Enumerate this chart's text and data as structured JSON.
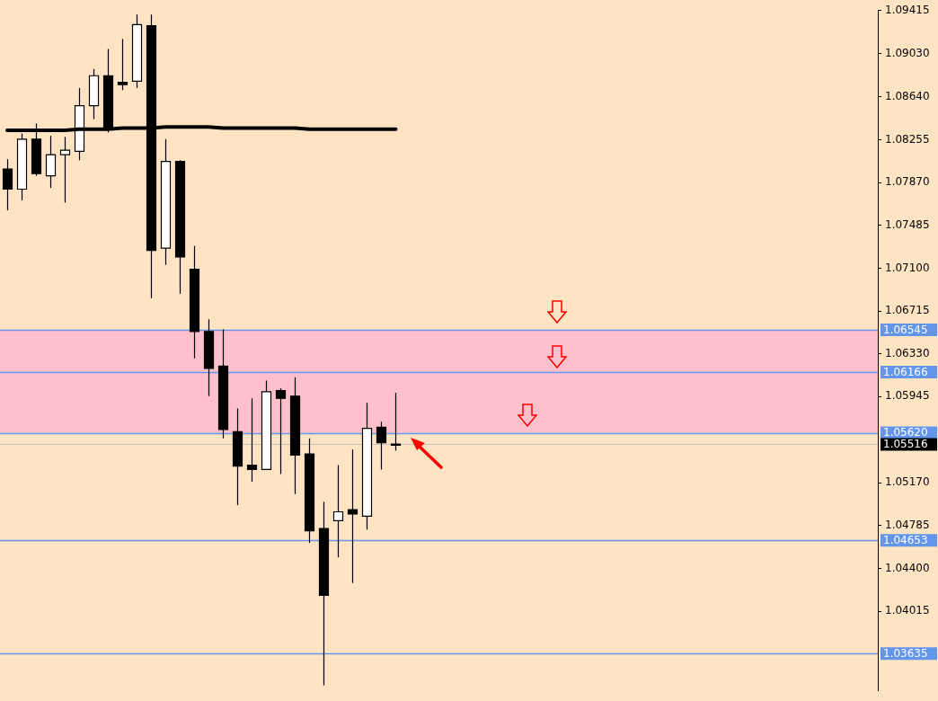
{
  "chart_data": {
    "type": "candlestick",
    "categories": [
      null,
      null,
      null,
      null,
      null,
      null,
      null,
      null,
      null,
      null,
      null,
      null,
      null,
      null,
      null,
      null,
      null,
      null,
      null,
      null,
      null,
      null,
      null,
      null,
      null,
      null,
      null,
      null,
      null,
      null,
      null,
      null,
      null,
      null,
      null,
      null,
      null,
      null,
      null,
      null,
      null,
      null,
      null,
      null,
      null,
      null,
      null,
      null,
      null,
      null,
      null,
      null,
      null,
      null,
      null,
      null,
      null,
      null,
      null,
      null,
      null
    ],
    "ohlc": [
      [
        1.0799,
        1.0808,
        1.0762,
        1.0781
      ],
      [
        1.0781,
        1.0831,
        1.0771,
        1.0826
      ],
      [
        1.0826,
        1.084,
        1.0793,
        1.0795
      ],
      [
        1.0793,
        1.0829,
        1.0782,
        1.0812
      ],
      [
        1.0812,
        1.0828,
        1.0769,
        1.0816
      ],
      [
        1.0815,
        1.0872,
        1.0807,
        1.0856
      ],
      [
        1.0856,
        1.0889,
        1.0844,
        1.0883
      ],
      [
        1.0883,
        1.0907,
        1.0832,
        1.0836
      ],
      [
        1.0877,
        1.0916,
        1.087,
        1.0875
      ],
      [
        1.0878,
        1.0938,
        1.0872,
        1.0929
      ],
      [
        1.0928,
        1.0938,
        1.0683,
        1.0726
      ],
      [
        1.0728,
        1.0826,
        1.0713,
        1.0806
      ],
      [
        1.0806,
        1.0807,
        1.0687,
        1.072
      ],
      [
        1.0709,
        1.073,
        1.0629,
        1.0653
      ],
      [
        1.0653,
        1.0664,
        1.0595,
        1.062
      ],
      [
        1.0622,
        1.0655,
        1.0557,
        1.0565
      ],
      [
        1.0563,
        1.0584,
        1.0497,
        1.0532
      ],
      [
        1.0533,
        1.0593,
        1.0518,
        1.0529
      ],
      [
        1.0529,
        1.0609,
        1.0529,
        1.0599
      ],
      [
        1.06,
        1.0602,
        1.0525,
        1.0593
      ],
      [
        1.0595,
        1.0612,
        1.0507,
        1.0542
      ],
      [
        1.0543,
        1.0557,
        1.0463,
        1.0474
      ],
      [
        1.0476,
        1.05,
        1.0335,
        1.0416
      ],
      [
        1.0483,
        1.0533,
        1.045,
        1.0491
      ],
      [
        1.0493,
        1.0547,
        1.0427,
        1.0489
      ],
      [
        1.0487,
        1.0589,
        1.0475,
        1.0566
      ],
      [
        1.0567,
        1.0572,
        1.0529,
        1.0553
      ],
      [
        1.0552,
        1.0598,
        1.0546,
        1.0552
      ],
      null,
      null,
      null,
      null,
      null,
      null,
      null,
      null,
      null,
      null,
      null,
      null,
      null,
      null,
      null,
      null,
      null,
      null,
      null,
      null,
      null,
      null,
      null,
      null,
      null,
      null,
      null,
      null,
      null,
      null,
      null,
      null,
      null
    ],
    "colors": [
      "#000000",
      "#ffffff",
      "#000000",
      "#ffffff",
      "#ffffff",
      "#ffffff",
      "#ffffff",
      "#000000",
      "#000000",
      "#ffffff",
      "#000000",
      "#ffffff",
      "#000000",
      "#000000",
      "#000000",
      "#000000",
      "#000000",
      "#000000",
      "#ffffff",
      "#000000",
      "#000000",
      "#000000",
      "#000000",
      "#ffffff",
      "#000000",
      "#ffffff",
      "#000000",
      "#000000",
      null,
      null,
      null,
      null,
      null,
      null,
      null,
      null,
      null,
      null,
      null,
      null,
      null,
      null,
      null,
      null,
      null,
      null,
      null,
      null,
      null,
      null,
      null,
      null,
      null,
      null,
      null,
      null,
      null,
      null,
      null,
      null,
      null
    ],
    "series": [
      {
        "type": "line",
        "color": "#000000",
        "values": [
          1.0834,
          1.0834,
          1.0834,
          1.0834,
          1.0834,
          1.0835,
          1.0835,
          1.0835,
          1.0836,
          1.0836,
          1.0836,
          1.0837,
          1.0837,
          1.0837,
          1.0837,
          1.0836,
          1.0836,
          1.0836,
          1.0836,
          1.0836,
          1.0836,
          1.0835,
          1.0835,
          1.0835,
          1.0835,
          1.0835,
          1.0835,
          1.0835,
          null,
          null,
          null,
          null,
          null,
          null,
          null,
          null,
          null,
          null,
          null,
          null,
          null,
          null,
          null,
          null,
          null,
          null,
          null,
          null,
          null,
          null,
          null,
          null,
          null,
          null,
          null,
          null,
          null,
          null,
          null,
          null,
          null
        ]
      }
    ],
    "ylim": [
      1.033,
      1.0942
    ],
    "yticks": [
      {
        "value": 1.09415,
        "label": "1.09415"
      },
      {
        "value": 1.0903,
        "label": "1.09030"
      },
      {
        "value": 1.0864,
        "label": "1.08640"
      },
      {
        "value": 1.08255,
        "label": "1.08255"
      },
      {
        "value": 1.0787,
        "label": "1.07870"
      },
      {
        "value": 1.07485,
        "label": "1.07485"
      },
      {
        "value": 1.071,
        "label": "1.07100"
      },
      {
        "value": 1.06715,
        "label": "1.06715"
      },
      {
        "value": 1.0633,
        "label": "1.06330"
      },
      {
        "value": 1.05945,
        "label": "1.05945"
      },
      {
        "value": 1.0517,
        "label": "1.05170"
      },
      {
        "value": 1.04785,
        "label": "1.04785"
      },
      {
        "value": 1.044,
        "label": "1.04400"
      },
      {
        "value": 1.04015,
        "label": "1.04015"
      }
    ],
    "bands": [
      {
        "axis": "y",
        "from": 1.0562,
        "to": 1.06545,
        "color": "#ffc0cb"
      }
    ],
    "ref_lines": [
      {
        "axis": "y",
        "value": 1.06545,
        "label": "1.06545",
        "color": "#6495ed"
      },
      {
        "axis": "y",
        "value": 1.06166,
        "label": "1.06166",
        "color": "#6495ed"
      },
      {
        "axis": "y",
        "value": 1.0562,
        "label": "1.05620",
        "color": "#6495ed"
      },
      {
        "axis": "y",
        "value": 1.05516,
        "label": "1.05516",
        "color": "#c0c0c0"
      },
      {
        "axis": "y",
        "value": 1.04653,
        "label": "1.04653",
        "color": "#6495ed"
      },
      {
        "axis": "y",
        "value": 1.03635,
        "label": "1.03635",
        "color": "#6495ed"
      }
    ],
    "tick_labels": "y",
    "grid": false,
    "legend": false
  }
}
